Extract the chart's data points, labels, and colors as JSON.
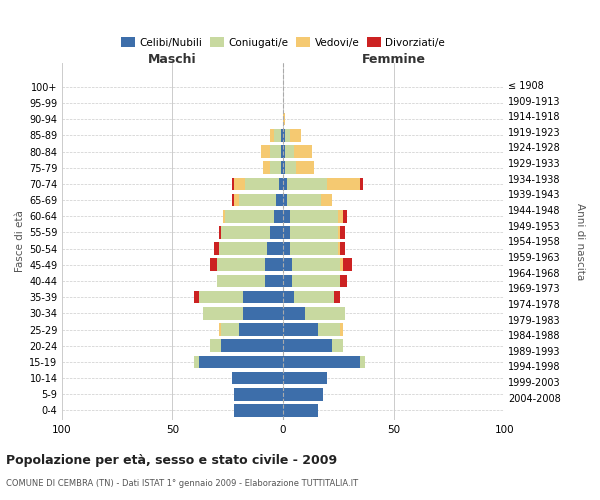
{
  "age_groups": [
    "0-4",
    "5-9",
    "10-14",
    "15-19",
    "20-24",
    "25-29",
    "30-34",
    "35-39",
    "40-44",
    "45-49",
    "50-54",
    "55-59",
    "60-64",
    "65-69",
    "70-74",
    "75-79",
    "80-84",
    "85-89",
    "90-94",
    "95-99",
    "100+"
  ],
  "birth_years": [
    "2004-2008",
    "1999-2003",
    "1994-1998",
    "1989-1993",
    "1984-1988",
    "1979-1983",
    "1974-1978",
    "1969-1973",
    "1964-1968",
    "1959-1963",
    "1954-1958",
    "1949-1953",
    "1944-1948",
    "1939-1943",
    "1934-1938",
    "1929-1933",
    "1924-1928",
    "1919-1923",
    "1914-1918",
    "1909-1913",
    "≤ 1908"
  ],
  "maschi": {
    "celibi": [
      22,
      22,
      23,
      38,
      28,
      20,
      18,
      18,
      8,
      8,
      7,
      6,
      4,
      3,
      2,
      1,
      1,
      1,
      0,
      0,
      0
    ],
    "coniugati": [
      0,
      0,
      0,
      2,
      5,
      8,
      18,
      20,
      22,
      22,
      22,
      22,
      22,
      17,
      15,
      5,
      5,
      3,
      0,
      0,
      0
    ],
    "vedovi": [
      0,
      0,
      0,
      0,
      0,
      1,
      0,
      0,
      0,
      0,
      0,
      0,
      1,
      2,
      5,
      3,
      4,
      2,
      0,
      0,
      0
    ],
    "divorziati": [
      0,
      0,
      0,
      0,
      0,
      0,
      0,
      2,
      0,
      3,
      2,
      1,
      0,
      1,
      1,
      0,
      0,
      0,
      0,
      0,
      0
    ]
  },
  "femmine": {
    "nubili": [
      16,
      18,
      20,
      35,
      22,
      16,
      10,
      5,
      4,
      4,
      3,
      3,
      3,
      2,
      2,
      1,
      1,
      1,
      0,
      0,
      0
    ],
    "coniugate": [
      0,
      0,
      0,
      2,
      5,
      10,
      18,
      18,
      22,
      22,
      22,
      22,
      22,
      15,
      18,
      5,
      4,
      2,
      0,
      0,
      0
    ],
    "vedove": [
      0,
      0,
      0,
      0,
      0,
      1,
      0,
      0,
      0,
      1,
      1,
      1,
      2,
      5,
      15,
      8,
      8,
      5,
      1,
      0,
      0
    ],
    "divorziate": [
      0,
      0,
      0,
      0,
      0,
      0,
      0,
      3,
      3,
      4,
      2,
      2,
      2,
      0,
      1,
      0,
      0,
      0,
      0,
      0,
      0
    ]
  },
  "colors": {
    "celibi": "#3d6eaa",
    "coniugati": "#c8d9a0",
    "vedovi": "#f5c971",
    "divorziati": "#cc2222"
  },
  "xlim": 100,
  "title": "Popolazione per età, sesso e stato civile - 2009",
  "subtitle": "COMUNE DI CEMBRA (TN) - Dati ISTAT 1° gennaio 2009 - Elaborazione TUTTITALIA.IT",
  "ylabel_left": "Fasce di età",
  "ylabel_right": "Anni di nascita",
  "xlabel_left": "Maschi",
  "xlabel_right": "Femmine",
  "background_color": "#ffffff",
  "grid_color": "#cccccc"
}
